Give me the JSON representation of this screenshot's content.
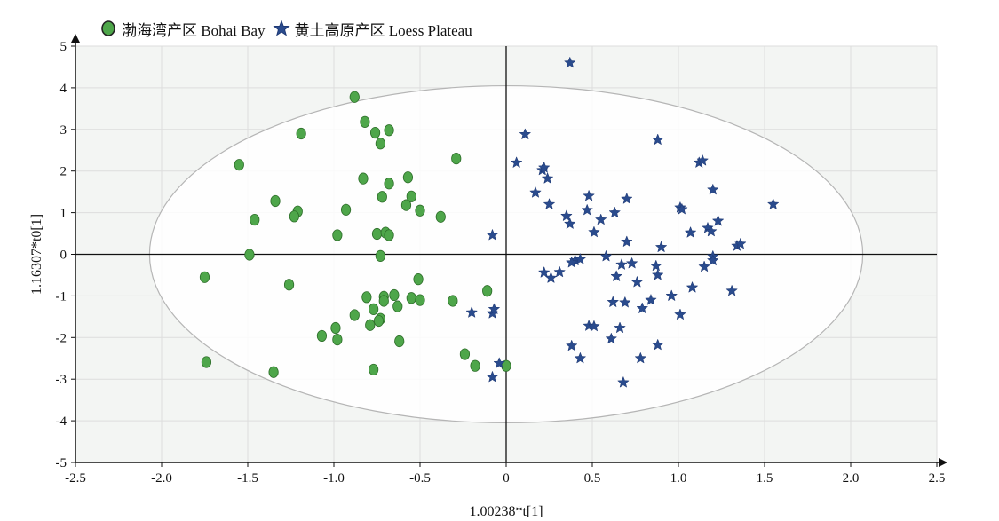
{
  "chart_data": {
    "type": "scatter",
    "title": "",
    "xlabel": "1.00238*t[1]",
    "ylabel": "1.16307*t0[1]",
    "xlim": [
      -2.5,
      2.5
    ],
    "ylim": [
      -5,
      5
    ],
    "x_ticks": [
      "-2.5",
      "-2.0",
      "-1.5",
      "-1.0",
      "-0.5",
      "0",
      "0.5",
      "1.0",
      "1.5",
      "2.0",
      "2.5"
    ],
    "y_ticks": [
      "5",
      "4",
      "3",
      "2",
      "1",
      "0",
      "-1",
      "-2",
      "-3",
      "-4",
      "-5"
    ],
    "grid": true,
    "legend_position": "top-left",
    "ellipse": {
      "center": [
        0,
        0
      ],
      "rx": 2.07,
      "ry": 4.05
    },
    "colors": {
      "plot_bg": "#f3f5f3",
      "ellipse_fill": "#ffffff",
      "ellipse_stroke": "#b5b5b5",
      "grid": "#dddddd",
      "axis": "#111111"
    },
    "series": [
      {
        "name": "渤海湾产区 Bohai Bay",
        "marker": "circle",
        "color": "#4ea64a",
        "stroke": "#2e6e2a",
        "points": [
          [
            -0.88,
            3.78
          ],
          [
            -0.82,
            3.18
          ],
          [
            -0.76,
            2.92
          ],
          [
            -0.68,
            2.98
          ],
          [
            -0.73,
            2.66
          ],
          [
            -1.19,
            2.9
          ],
          [
            -1.55,
            2.15
          ],
          [
            -0.83,
            1.82
          ],
          [
            -0.68,
            1.7
          ],
          [
            -0.57,
            1.85
          ],
          [
            -0.29,
            2.3
          ],
          [
            -0.72,
            1.38
          ],
          [
            -0.55,
            1.39
          ],
          [
            -0.58,
            1.18
          ],
          [
            -0.5,
            1.05
          ],
          [
            -0.38,
            0.9
          ],
          [
            -0.93,
            1.07
          ],
          [
            -1.34,
            1.28
          ],
          [
            -1.21,
            1.03
          ],
          [
            -1.23,
            0.91
          ],
          [
            -1.46,
            0.83
          ],
          [
            -0.75,
            0.49
          ],
          [
            -0.7,
            0.52
          ],
          [
            -0.68,
            0.46
          ],
          [
            -0.98,
            0.46
          ],
          [
            -1.49,
            -0.01
          ],
          [
            -0.73,
            -0.04
          ],
          [
            -1.75,
            -0.55
          ],
          [
            -1.26,
            -0.73
          ],
          [
            -0.51,
            -0.6
          ],
          [
            -0.81,
            -1.03
          ],
          [
            -0.71,
            -1.02
          ],
          [
            -0.65,
            -0.98
          ],
          [
            -0.55,
            -1.05
          ],
          [
            -0.5,
            -1.1
          ],
          [
            -0.31,
            -1.12
          ],
          [
            -0.11,
            -0.88
          ],
          [
            -0.71,
            -1.12
          ],
          [
            -0.63,
            -1.25
          ],
          [
            -0.77,
            -1.32
          ],
          [
            -0.88,
            -1.46
          ],
          [
            -0.73,
            -1.55
          ],
          [
            -0.74,
            -1.6
          ],
          [
            -0.79,
            -1.7
          ],
          [
            -0.99,
            -1.77
          ],
          [
            -1.07,
            -1.96
          ],
          [
            -0.98,
            -2.05
          ],
          [
            -0.62,
            -2.09
          ],
          [
            -0.24,
            -2.4
          ],
          [
            -0.18,
            -2.68
          ],
          [
            -1.74,
            -2.59
          ],
          [
            -1.35,
            -2.83
          ],
          [
            -0.77,
            -2.77
          ],
          [
            0.0,
            -2.68
          ]
        ]
      },
      {
        "name": "黄土高原产区 Loess Plateau",
        "marker": "star",
        "color": "#2a4b8d",
        "stroke": "#1b3570",
        "points": [
          [
            0.37,
            4.6
          ],
          [
            0.11,
            2.88
          ],
          [
            0.88,
            2.75
          ],
          [
            0.06,
            2.2
          ],
          [
            0.21,
            2.02
          ],
          [
            0.22,
            2.08
          ],
          [
            0.24,
            1.82
          ],
          [
            1.12,
            2.2
          ],
          [
            1.14,
            2.25
          ],
          [
            0.17,
            1.48
          ],
          [
            0.25,
            1.2
          ],
          [
            0.48,
            1.4
          ],
          [
            0.7,
            1.33
          ],
          [
            1.2,
            1.55
          ],
          [
            1.01,
            1.12
          ],
          [
            1.02,
            1.08
          ],
          [
            1.55,
            1.2
          ],
          [
            0.35,
            0.92
          ],
          [
            0.37,
            0.73
          ],
          [
            0.47,
            1.06
          ],
          [
            0.55,
            0.83
          ],
          [
            0.63,
            1.0
          ],
          [
            0.51,
            0.53
          ],
          [
            0.7,
            0.3
          ],
          [
            0.9,
            0.17
          ],
          [
            1.07,
            0.52
          ],
          [
            1.17,
            0.63
          ],
          [
            1.19,
            0.55
          ],
          [
            1.23,
            0.8
          ],
          [
            1.34,
            0.2
          ],
          [
            1.36,
            0.25
          ],
          [
            -0.08,
            0.46
          ],
          [
            0.4,
            -0.15
          ],
          [
            0.43,
            -0.12
          ],
          [
            0.58,
            -0.05
          ],
          [
            0.38,
            -0.2
          ],
          [
            0.67,
            -0.25
          ],
          [
            0.73,
            -0.22
          ],
          [
            0.87,
            -0.28
          ],
          [
            0.88,
            -0.5
          ],
          [
            1.15,
            -0.3
          ],
          [
            1.2,
            -0.05
          ],
          [
            1.2,
            -0.15
          ],
          [
            0.22,
            -0.44
          ],
          [
            0.26,
            -0.57
          ],
          [
            0.31,
            -0.43
          ],
          [
            0.64,
            -0.53
          ],
          [
            0.76,
            -0.67
          ],
          [
            0.96,
            -1.0
          ],
          [
            1.08,
            -0.8
          ],
          [
            1.31,
            -0.88
          ],
          [
            0.62,
            -1.15
          ],
          [
            0.69,
            -1.16
          ],
          [
            0.79,
            -1.3
          ],
          [
            0.84,
            -1.1
          ],
          [
            1.01,
            -1.45
          ],
          [
            -0.2,
            -1.4
          ],
          [
            -0.08,
            -1.42
          ],
          [
            -0.07,
            -1.32
          ],
          [
            0.48,
            -1.72
          ],
          [
            0.51,
            -1.73
          ],
          [
            0.66,
            -1.77
          ],
          [
            0.61,
            -2.03
          ],
          [
            0.38,
            -2.2
          ],
          [
            0.43,
            -2.5
          ],
          [
            0.78,
            -2.5
          ],
          [
            0.88,
            -2.18
          ],
          [
            -0.04,
            -2.62
          ],
          [
            -0.08,
            -2.95
          ],
          [
            0.68,
            -3.08
          ]
        ]
      }
    ]
  }
}
